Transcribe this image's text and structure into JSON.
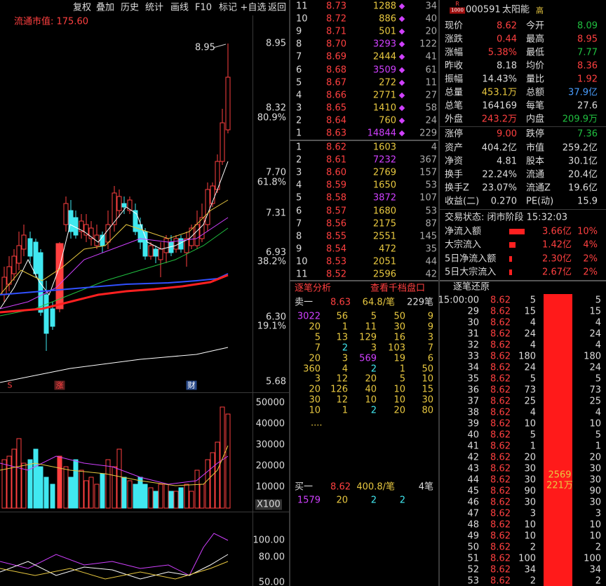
{
  "toolbar": [
    "复权",
    "叠加",
    "历史",
    "统计",
    "画线",
    "F10",
    "标记",
    "+自选",
    "返回"
  ],
  "chart": {
    "market_value": "流通市值: 175.60",
    "high_label": "8.95",
    "price_ticks": [
      "8.95",
      "8.32",
      "7.70",
      "7.31",
      "6.93",
      "6.30",
      "5.68"
    ],
    "pct_ticks": [
      "80.9%",
      "61.8%",
      "38.2%",
      "19.1%"
    ],
    "markers": [
      "S",
      "涨",
      "财"
    ],
    "volume_ticks": [
      "50000",
      "40000",
      "30000",
      "20000",
      "10000"
    ],
    "volume_unit": "X100",
    "indicator_ticks": [
      "100.00",
      "80.00",
      "50.00"
    ]
  },
  "order_book": {
    "asks": [
      [
        11,
        "8.73",
        1288,
        34
      ],
      [
        10,
        "8.72",
        886,
        40
      ],
      [
        9,
        "8.71",
        501,
        20
      ],
      [
        8,
        "8.70",
        3293,
        122
      ],
      [
        7,
        "8.69",
        2444,
        41
      ],
      [
        6,
        "8.68",
        3509,
        61
      ],
      [
        5,
        "8.67",
        272,
        11
      ],
      [
        4,
        "8.66",
        2771,
        27
      ],
      [
        3,
        "8.65",
        1410,
        58
      ],
      [
        2,
        "8.64",
        760,
        24
      ],
      [
        1,
        "8.63",
        14844,
        229
      ]
    ],
    "bids": [
      [
        1,
        "8.62",
        1603,
        4
      ],
      [
        2,
        "8.61",
        7232,
        367
      ],
      [
        3,
        "8.60",
        2769,
        157
      ],
      [
        4,
        "8.59",
        1650,
        53
      ],
      [
        5,
        "8.58",
        3872,
        107
      ],
      [
        6,
        "8.57",
        1680,
        53
      ],
      [
        7,
        "8.56",
        2175,
        87
      ],
      [
        8,
        "8.55",
        2551,
        145
      ],
      [
        9,
        "8.54",
        472,
        35
      ],
      [
        10,
        "8.53",
        2051,
        44
      ],
      [
        11,
        "8.52",
        2596,
        42
      ]
    ]
  },
  "trade_analysis": {
    "tabs": [
      "逐笔分析",
      "查看千档盘口"
    ],
    "ask": [
      "卖一",
      "8.63",
      "64.8/笔",
      "229笔"
    ],
    "ask_queue": [
      [
        3022,
        56,
        5,
        50,
        9
      ],
      [
        20,
        1,
        11,
        30,
        9
      ],
      [
        5,
        13,
        129,
        16,
        3
      ],
      [
        7,
        2,
        3,
        103,
        7
      ],
      [
        20,
        3,
        569,
        19,
        6
      ],
      [
        360,
        4,
        2,
        1,
        50
      ],
      [
        3,
        12,
        20,
        5,
        10
      ],
      [
        20,
        126,
        40,
        10,
        15
      ],
      [
        30,
        12,
        10,
        10,
        30
      ],
      [
        10,
        1,
        2,
        20,
        80
      ]
    ],
    "more": "....",
    "bid": [
      "买一",
      "8.62",
      "400.8/笔",
      "4笔"
    ],
    "bid_queue": [
      [
        1579,
        20,
        2,
        2
      ]
    ]
  },
  "quote": {
    "badge": [
      "R",
      "1000"
    ],
    "code": "000591",
    "name": "太阳能",
    "tag": "高",
    "rows": [
      [
        "现价",
        "8.62",
        "今开",
        "8.09"
      ],
      [
        "涨跌",
        "0.44",
        "最高",
        "8.95"
      ],
      [
        "涨幅",
        "5.38%",
        "最低",
        "7.77"
      ],
      [
        "昨收",
        "8.18",
        "均价",
        "8.36"
      ],
      [
        "振幅",
        "14.43%",
        "量比",
        "1.92"
      ],
      [
        "总量",
        "453.1万",
        "总额",
        "37.9亿"
      ],
      [
        "总笔",
        "164169",
        "每笔",
        "27.6"
      ],
      [
        "外盘",
        "243.2万",
        "内盘",
        "209.9万"
      ],
      [
        "涨停",
        "9.00",
        "跌停",
        "7.36"
      ],
      [
        "资产",
        "404.2亿",
        "市值",
        "259.2亿"
      ],
      [
        "净资",
        "4.81",
        "股本",
        "30.1亿"
      ],
      [
        "换手",
        "22.24%",
        "流通",
        "20.4亿"
      ],
      [
        "换手Z",
        "23.07%",
        "流通Z",
        "19.6亿"
      ],
      [
        "收益(二)",
        "0.270",
        "PE(动)",
        "15.9"
      ]
    ],
    "row_colors": [
      [
        "#ff4040",
        "#20c040"
      ],
      [
        "#ff4040",
        "#ff4040"
      ],
      [
        "#ff4040",
        "#20c040"
      ],
      [
        "#dddddd",
        "#ff4040"
      ],
      [
        "#dddddd",
        "#ff4040"
      ],
      [
        "#e8c840",
        "#4a9eff"
      ],
      [
        "#dddddd",
        "#dddddd"
      ],
      [
        "#ff4040",
        "#20c040"
      ],
      [
        "#ff4040",
        "#20c040"
      ],
      [
        "#dddddd",
        "#dddddd"
      ],
      [
        "#dddddd",
        "#dddddd"
      ],
      [
        "#dddddd",
        "#dddddd"
      ],
      [
        "#dddddd",
        "#dddddd"
      ],
      [
        "#dddddd",
        "#dddddd"
      ]
    ],
    "status": "交易状态: 闭市阶段 15:32:03",
    "flows": [
      [
        "净流入额",
        "3.66亿",
        "10%"
      ],
      [
        "大宗流入",
        "1.42亿",
        "4%"
      ],
      [
        "5日净流入额",
        "2.30亿",
        "2%"
      ],
      [
        "5日大宗流入",
        "2.67亿",
        "2%"
      ]
    ],
    "ticks_title": "逐笔还原",
    "ticks": [
      [
        "15:00:00",
        "8.62",
        5,
        5
      ],
      [
        "29",
        "8.62",
        15,
        15
      ],
      [
        "30",
        "8.62",
        4,
        4
      ],
      [
        "31",
        "8.62",
        24,
        24
      ],
      [
        "32",
        "8.62",
        4,
        4
      ],
      [
        "33",
        "8.62",
        180,
        180
      ],
      [
        "34",
        "8.62",
        24,
        24
      ],
      [
        "35",
        "8.62",
        5,
        5
      ],
      [
        "36",
        "8.62",
        73,
        73
      ],
      [
        "37",
        "8.62",
        25,
        25
      ],
      [
        "38",
        "8.62",
        4,
        4
      ],
      [
        "39",
        "8.62",
        10,
        10
      ],
      [
        "40",
        "8.62",
        5,
        5
      ],
      [
        "41",
        "8.62",
        1,
        1
      ],
      [
        "42",
        "8.62",
        20,
        20
      ],
      [
        "43",
        "8.62",
        30,
        30
      ],
      [
        "44",
        "8.62",
        30,
        30
      ],
      [
        "45",
        "8.62",
        90,
        90
      ],
      [
        "46",
        "8.62",
        30,
        30
      ],
      [
        "47",
        "8.62",
        3,
        3
      ],
      [
        "48",
        "8.62",
        10,
        10
      ],
      [
        "49",
        "8.62",
        10,
        10
      ],
      [
        "50",
        "8.62",
        2,
        2
      ],
      [
        "51",
        "8.62",
        100,
        100
      ],
      [
        "52",
        "8.62",
        34,
        34
      ],
      [
        "53",
        "8.62",
        2,
        2
      ]
    ],
    "bar_labels": [
      "2569",
      "221万"
    ]
  }
}
